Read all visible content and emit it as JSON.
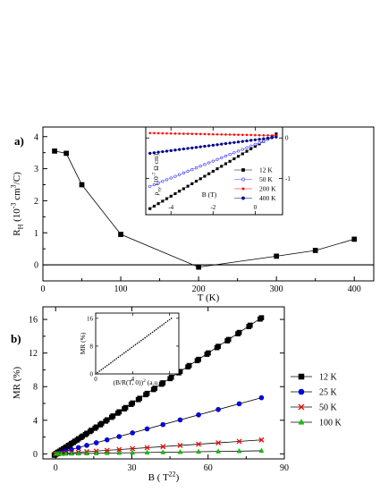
{
  "chart_data": [
    {
      "panel": "a)",
      "type": "line",
      "xlabel": "T (K)",
      "ylabel": "R_H (10^-3 cm^3/C)",
      "ylabel_parts": {
        "main": "R",
        "sub": "H",
        "open": " (10",
        "sup": "-3",
        "mid": " cm",
        "sup2": "3",
        "close": "/C)"
      },
      "xlim": [
        0,
        425
      ],
      "ylim": [
        -0.5,
        4.3
      ],
      "xticks": [
        "0",
        "100",
        "200",
        "300",
        "400"
      ],
      "yticks": [
        "0",
        "1",
        "2",
        "3",
        "4"
      ],
      "zero_line": true,
      "series": [
        {
          "marker": "square",
          "x": [
            15,
            30,
            50,
            100,
            200,
            300,
            350,
            400
          ],
          "y": [
            3.55,
            3.48,
            2.5,
            0.95,
            -0.07,
            0.27,
            0.45,
            0.8
          ]
        }
      ],
      "inset": {
        "type": "line",
        "xlabel": "B (T)",
        "ylabel_parts": {
          "main": "ρ",
          "sub": "xy",
          "open": " (10",
          "sup": "-7",
          "close": " Ω cm)"
        },
        "xlim": [
          -5.2,
          1.3
        ],
        "ylim": [
          -1.9,
          0.27
        ],
        "xticks": [
          "-4",
          "-2",
          "0"
        ],
        "yticks": [
          "0",
          "-1"
        ],
        "series": [
          {
            "name": "12 K",
            "marker": "square-filled",
            "x0": -5,
            "x1": 1,
            "y0": -1.75,
            "y1": 0.1
          },
          {
            "name": "50 K",
            "marker": "circle-open",
            "x0": -5,
            "x1": 1,
            "y0": -1.2,
            "y1": 0.05
          },
          {
            "name": "200 K",
            "marker": "star",
            "x0": -5,
            "x1": 1,
            "y0": 0.12,
            "y1": 0.06
          },
          {
            "name": "400 K",
            "marker": "circle-filled",
            "x0": -5,
            "x1": 1,
            "y0": -0.38,
            "y1": 0.02
          }
        ]
      }
    },
    {
      "panel": "b)",
      "type": "line",
      "xlabel_parts": {
        "main": "B",
        "sup": "2",
        "open": " ( T",
        "sup2": "2",
        "close": ")"
      },
      "ylabel": "MR (%)",
      "xlim": [
        -5,
        90
      ],
      "ylim": [
        -0.6,
        17.5
      ],
      "xticks": [
        "0",
        "30",
        "60",
        "90"
      ],
      "yticks": [
        "0",
        "4",
        "8",
        "12",
        "16"
      ],
      "series": [
        {
          "name": "12 K",
          "marker": "square",
          "color": "#000000",
          "slope": 0.2,
          "xmax": 81
        },
        {
          "name": "25 K",
          "marker": "circle",
          "color": "#0000ff",
          "slope": 0.0825,
          "xmax": 81
        },
        {
          "name": "50 K",
          "marker": "x",
          "color": "#ff0000",
          "slope": 0.0205,
          "xmax": 81
        },
        {
          "name": "100 K",
          "marker": "triangle",
          "color": "#00cc00",
          "slope": 0.0045,
          "xmax": 81
        }
      ],
      "inset": {
        "type": "scatter",
        "xlabel_parts": {
          "open": "(B/R(T, 0))",
          "sup": "2",
          "close": " (a.u.)"
        },
        "ylabel": "MR (%)",
        "xlim": [
          0,
          9
        ],
        "ylim": [
          0,
          17.5
        ],
        "xticks": [
          "0",
          "4",
          "8"
        ],
        "yticks": [
          "0",
          "8",
          "16"
        ],
        "x0": 0,
        "x1": 8.2,
        "y0": 0,
        "y1": 16
      }
    }
  ]
}
